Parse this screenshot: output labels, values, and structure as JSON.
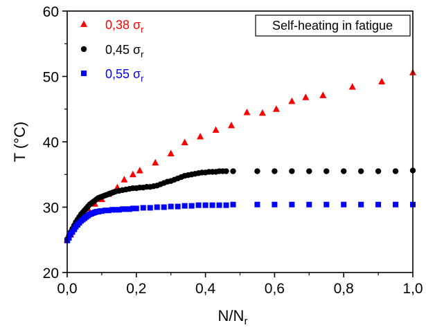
{
  "chart_data": {
    "type": "scatter",
    "title": "Self-heating in fatigue",
    "xlabel": "N/N",
    "xlabel_sub": "r",
    "ylabel": "T (°C)",
    "xlim": [
      0,
      1
    ],
    "ylim": [
      20,
      60
    ],
    "x_ticks": [
      "0,0",
      "0,2",
      "0,4",
      "0,6",
      "0,8",
      "1,0"
    ],
    "x_tick_values": [
      0,
      0.2,
      0.4,
      0.6,
      0.8,
      1.0
    ],
    "y_ticks": [
      "20",
      "30",
      "40",
      "50",
      "60"
    ],
    "y_tick_values": [
      20,
      30,
      40,
      50,
      60
    ],
    "grid": false,
    "legend_position": "top-left",
    "series": [
      {
        "name": "0,38 σ",
        "name_sub": "r",
        "marker": "triangle",
        "color": "#ff0000",
        "x": [
          0.0,
          0.01,
          0.02,
          0.03,
          0.045,
          0.06,
          0.08,
          0.1,
          0.12,
          0.145,
          0.165,
          0.19,
          0.21,
          0.255,
          0.3,
          0.34,
          0.385,
          0.43,
          0.475,
          0.52,
          0.565,
          0.605,
          0.65,
          0.69,
          0.74,
          0.825,
          0.91,
          1.0
        ],
        "y": [
          25.0,
          25.8,
          26.8,
          27.8,
          28.8,
          29.8,
          30.5,
          31.2,
          32.0,
          33.0,
          34.2,
          35.0,
          35.6,
          36.8,
          38.2,
          39.9,
          40.8,
          41.8,
          42.5,
          44.5,
          44.4,
          45.0,
          46.2,
          46.8,
          47.1,
          48.4,
          49.2,
          50.6
        ]
      },
      {
        "name": "0,45 σ",
        "name_sub": "r",
        "marker": "circle",
        "color": "#000000",
        "x": [
          0.0,
          0.005,
          0.01,
          0.015,
          0.02,
          0.025,
          0.03,
          0.035,
          0.04,
          0.045,
          0.05,
          0.055,
          0.06,
          0.065,
          0.07,
          0.075,
          0.08,
          0.085,
          0.09,
          0.095,
          0.1,
          0.105,
          0.11,
          0.115,
          0.12,
          0.125,
          0.13,
          0.135,
          0.14,
          0.15,
          0.16,
          0.17,
          0.18,
          0.19,
          0.2,
          0.21,
          0.22,
          0.23,
          0.24,
          0.25,
          0.26,
          0.27,
          0.28,
          0.29,
          0.3,
          0.31,
          0.32,
          0.33,
          0.34,
          0.35,
          0.36,
          0.37,
          0.38,
          0.39,
          0.4,
          0.41,
          0.42,
          0.43,
          0.44,
          0.45,
          0.46,
          0.48,
          0.55,
          0.6,
          0.65,
          0.7,
          0.75,
          0.8,
          0.85,
          0.9,
          0.95,
          1.0
        ],
        "y": [
          25.1,
          25.6,
          26.2,
          26.7,
          27.2,
          27.7,
          28.1,
          28.5,
          28.9,
          29.2,
          29.5,
          29.8,
          30.1,
          30.4,
          30.6,
          30.8,
          31.0,
          31.2,
          31.4,
          31.5,
          31.6,
          31.7,
          31.8,
          31.9,
          32.0,
          32.1,
          32.2,
          32.3,
          32.4,
          32.5,
          32.6,
          32.7,
          32.8,
          32.9,
          32.9,
          33.0,
          33.0,
          33.1,
          33.1,
          33.2,
          33.3,
          33.5,
          33.7,
          33.9,
          34.0,
          34.2,
          34.4,
          34.6,
          34.8,
          34.9,
          35.0,
          35.1,
          35.2,
          35.3,
          35.3,
          35.4,
          35.4,
          35.4,
          35.5,
          35.5,
          35.5,
          35.5,
          35.5,
          35.5,
          35.5,
          35.5,
          35.5,
          35.5,
          35.5,
          35.5,
          35.5,
          35.6
        ]
      },
      {
        "name": "0,55 σ",
        "name_sub": "r",
        "marker": "square",
        "color": "#0000ff",
        "x": [
          0.0,
          0.005,
          0.01,
          0.015,
          0.02,
          0.025,
          0.03,
          0.035,
          0.04,
          0.045,
          0.05,
          0.055,
          0.06,
          0.065,
          0.07,
          0.075,
          0.08,
          0.085,
          0.09,
          0.095,
          0.1,
          0.11,
          0.12,
          0.13,
          0.14,
          0.15,
          0.16,
          0.17,
          0.18,
          0.19,
          0.2,
          0.22,
          0.24,
          0.26,
          0.28,
          0.3,
          0.32,
          0.34,
          0.36,
          0.38,
          0.4,
          0.42,
          0.44,
          0.46,
          0.48,
          0.55,
          0.6,
          0.65,
          0.7,
          0.75,
          0.8,
          0.85,
          0.9,
          0.95,
          1.0
        ],
        "y": [
          24.9,
          25.3,
          25.8,
          26.2,
          26.6,
          27.0,
          27.3,
          27.6,
          27.9,
          28.1,
          28.3,
          28.5,
          28.7,
          28.9,
          29.0,
          29.1,
          29.2,
          29.3,
          29.3,
          29.4,
          29.4,
          29.5,
          29.5,
          29.6,
          29.6,
          29.6,
          29.7,
          29.7,
          29.7,
          29.8,
          29.8,
          29.9,
          29.9,
          30.0,
          30.0,
          30.1,
          30.1,
          30.2,
          30.2,
          30.3,
          30.3,
          30.3,
          30.3,
          30.3,
          30.4,
          30.4,
          30.4,
          30.4,
          30.4,
          30.4,
          30.4,
          30.4,
          30.4,
          30.4,
          30.4
        ]
      }
    ]
  }
}
